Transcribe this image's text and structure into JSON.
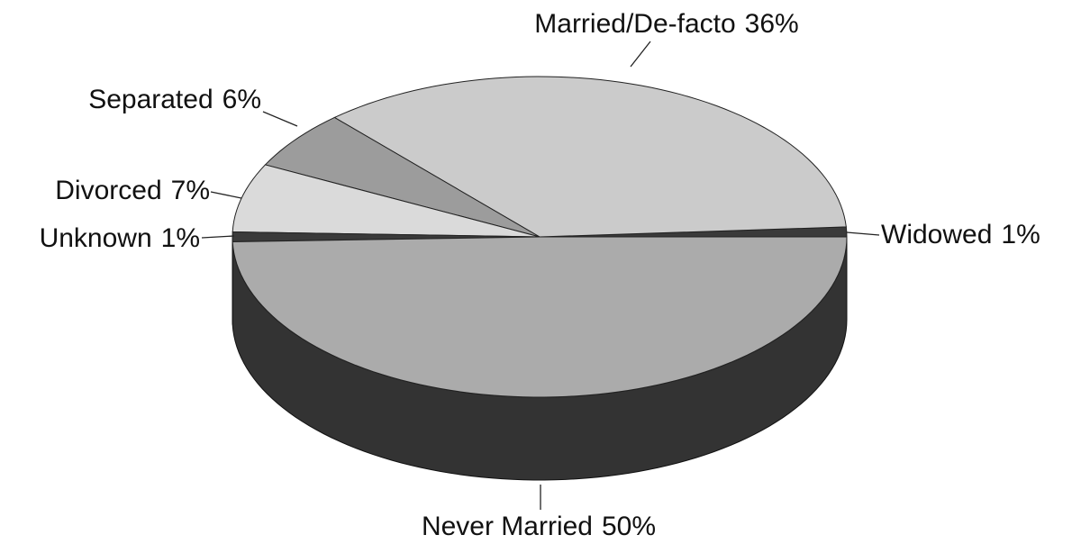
{
  "chart_data": {
    "type": "pie3d",
    "categories": [
      "Widowed",
      "Married/De-facto",
      "Separated",
      "Divorced",
      "Unknown",
      "Never Married"
    ],
    "values": [
      1,
      36,
      6,
      7,
      1,
      50
    ],
    "value_labels": [
      "1%",
      "36%",
      "6%",
      "7%",
      "1%",
      "50%"
    ],
    "colors": [
      "#3a3a3a",
      "#cbcbcb",
      "#9c9c9c",
      "#dadada",
      "#3a3a3a",
      "#ababab"
    ]
  }
}
